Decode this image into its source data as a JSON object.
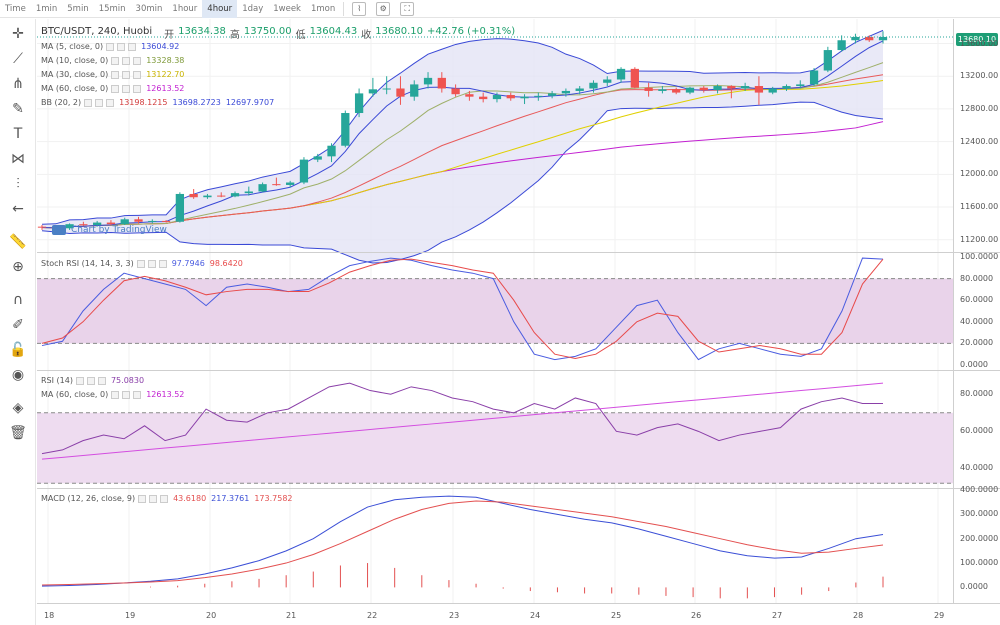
{
  "toolbar": {
    "timeframes": [
      {
        "label": "Time",
        "active": false
      },
      {
        "label": "1min",
        "active": false
      },
      {
        "label": "5min",
        "active": false
      },
      {
        "label": "15min",
        "active": false
      },
      {
        "label": "30min",
        "active": false
      },
      {
        "label": "1hour",
        "active": false
      },
      {
        "label": "4hour",
        "active": true
      },
      {
        "label": "1day",
        "active": false
      },
      {
        "label": "1week",
        "active": false
      },
      {
        "label": "1mon",
        "active": false
      }
    ]
  },
  "header": {
    "symbol": "BTC/USDT, 240, Huobi",
    "open_label": "开",
    "open": "13634.38",
    "high_label": "高",
    "high": "13750.00",
    "low_label": "低",
    "low": "13604.43",
    "close_label": "收",
    "close": "13680.10",
    "change": "+42.76 (+0.31%)"
  },
  "indicators": {
    "ma5": {
      "name": "MA (5, close, 0)",
      "value": "13604.92",
      "color": "#3a49d6"
    },
    "ma10": {
      "name": "MA (10, close, 0)",
      "value": "13328.38",
      "color": "#7f9a3a"
    },
    "ma30": {
      "name": "MA (30, close, 0)",
      "value": "13122.70",
      "color": "#d9c400"
    },
    "ma60": {
      "name": "MA (60, close, 0)",
      "value": "12613.52",
      "color": "#c21fd1"
    },
    "bb": {
      "name": "BB (20, 2)",
      "v1": "13198.1215",
      "v2": "13698.2723",
      "v3": "12697.9707"
    },
    "stoch": {
      "name": "Stoch RSI (14, 14, 3, 3)",
      "k": "97.7946",
      "d": "98.6420"
    },
    "rsi": {
      "name": "RSI (14)",
      "value": "75.0830",
      "ma_name": "MA (60, close, 0)",
      "ma_value": "12613.52"
    },
    "macd": {
      "name": "MACD (12, 26, close, 9)",
      "hist": "43.6180",
      "macd": "217.3761",
      "signal": "173.7582"
    }
  },
  "watermark": "Chart by TradingView",
  "last_price": "13680.10",
  "price_axis": [
    "13600.00",
    "13200.00",
    "12800.00",
    "12400.00",
    "12000.00",
    "11600.00",
    "11200.00"
  ],
  "stoch_axis": [
    "100.0000",
    "80.0000",
    "60.0000",
    "40.0000",
    "20.0000",
    "0.0000"
  ],
  "rsi_axis": [
    "80.0000",
    "60.0000",
    "40.0000"
  ],
  "macd_axis": [
    "400.0000",
    "300.0000",
    "200.0000",
    "100.0000",
    "0.0000"
  ],
  "time_axis": [
    "18",
    "19",
    "20",
    "21",
    "22",
    "23",
    "24",
    "25",
    "26",
    "27",
    "28",
    "29"
  ],
  "colors": {
    "up": "#26a69a",
    "down": "#ef5350",
    "bb_fill": "#e3e4f5",
    "stoch_k": "#4a5ce0",
    "stoch_d": "#e84a4a",
    "rsi": "#8a3fa8",
    "macd": "#3b4fd6",
    "signal": "#e35050"
  },
  "chart_data": {
    "type": "line",
    "candles": [
      [
        11360,
        11380,
        11320,
        11350
      ],
      [
        11350,
        11370,
        11330,
        11340
      ],
      [
        11340,
        11400,
        11320,
        11390
      ],
      [
        11390,
        11420,
        11370,
        11380
      ],
      [
        11380,
        11430,
        11360,
        11410
      ],
      [
        11410,
        11440,
        11380,
        11390
      ],
      [
        11390,
        11470,
        11380,
        11450
      ],
      [
        11450,
        11480,
        11400,
        11420
      ],
      [
        11420,
        11450,
        11400,
        11430
      ],
      [
        11430,
        11440,
        11410,
        11420
      ],
      [
        11420,
        11780,
        11410,
        11760
      ],
      [
        11760,
        11820,
        11700,
        11720
      ],
      [
        11720,
        11760,
        11700,
        11740
      ],
      [
        11740,
        11780,
        11720,
        11730
      ],
      [
        11730,
        11790,
        11720,
        11770
      ],
      [
        11770,
        11850,
        11740,
        11790
      ],
      [
        11790,
        11900,
        11780,
        11880
      ],
      [
        11880,
        11960,
        11860,
        11870
      ],
      [
        11870,
        11920,
        11840,
        11900
      ],
      [
        11900,
        12210,
        11880,
        12180
      ],
      [
        12180,
        12250,
        12150,
        12220
      ],
      [
        12220,
        12380,
        12150,
        12350
      ],
      [
        12350,
        12780,
        12330,
        12750
      ],
      [
        12750,
        13050,
        12700,
        12990
      ],
      [
        12990,
        13180,
        12950,
        13040
      ],
      [
        13040,
        13200,
        12980,
        13050
      ],
      [
        13050,
        13200,
        12850,
        12950
      ],
      [
        12950,
        13150,
        12900,
        13100
      ],
      [
        13100,
        13250,
        13050,
        13180
      ],
      [
        13180,
        13250,
        13000,
        13050
      ],
      [
        13050,
        13100,
        12950,
        12980
      ],
      [
        12980,
        13020,
        12900,
        12950
      ],
      [
        12950,
        13000,
        12880,
        12920
      ],
      [
        12920,
        13000,
        12880,
        12970
      ],
      [
        12970,
        13000,
        12900,
        12930
      ],
      [
        12930,
        12980,
        12860,
        12950
      ],
      [
        12950,
        13000,
        12900,
        12960
      ],
      [
        12960,
        13020,
        12930,
        12990
      ],
      [
        12990,
        13050,
        12950,
        13020
      ],
      [
        13020,
        13080,
        12980,
        13050
      ],
      [
        13050,
        13150,
        13000,
        13120
      ],
      [
        13120,
        13200,
        13080,
        13160
      ],
      [
        13160,
        13310,
        13120,
        13290
      ],
      [
        13290,
        13310,
        13050,
        13060
      ],
      [
        13060,
        13120,
        12950,
        13020
      ],
      [
        13020,
        13080,
        12990,
        13040
      ],
      [
        13040,
        13060,
        12980,
        13000
      ],
      [
        13000,
        13070,
        12980,
        13060
      ],
      [
        13060,
        13080,
        13000,
        13030
      ],
      [
        13030,
        13100,
        12990,
        13080
      ],
      [
        13080,
        13090,
        12930,
        13050
      ],
      [
        13050,
        13120,
        13020,
        13080
      ],
      [
        13080,
        13200,
        12850,
        13000
      ],
      [
        13000,
        13070,
        12980,
        13050
      ],
      [
        13050,
        13100,
        13020,
        13080
      ],
      [
        13080,
        13150,
        13050,
        13100
      ],
      [
        13100,
        13300,
        13080,
        13270
      ],
      [
        13270,
        13560,
        13250,
        13520
      ],
      [
        13520,
        13700,
        13500,
        13640
      ],
      [
        13640,
        13720,
        13600,
        13680
      ],
      [
        13680,
        13700,
        13620,
        13640
      ],
      [
        13640,
        13750,
        13600,
        13680
      ]
    ],
    "stoch_k": [
      18,
      22,
      50,
      70,
      85,
      80,
      75,
      70,
      55,
      72,
      75,
      72,
      68,
      70,
      82,
      92,
      96,
      99,
      97,
      92,
      88,
      85,
      80,
      40,
      10,
      5,
      8,
      15,
      35,
      55,
      60,
      30,
      5,
      15,
      20,
      15,
      10,
      8,
      15,
      50,
      99,
      98
    ],
    "stoch_d": [
      20,
      25,
      40,
      60,
      78,
      82,
      78,
      72,
      65,
      68,
      70,
      70,
      68,
      68,
      76,
      86,
      92,
      97,
      98,
      95,
      92,
      88,
      85,
      60,
      30,
      10,
      6,
      10,
      22,
      40,
      48,
      45,
      22,
      12,
      15,
      18,
      15,
      10,
      10,
      30,
      75,
      98
    ],
    "rsi": [
      48,
      50,
      55,
      58,
      56,
      63,
      55,
      58,
      72,
      66,
      65,
      70,
      72,
      78,
      84,
      86,
      82,
      80,
      84,
      82,
      78,
      76,
      72,
      70,
      75,
      72,
      78,
      75,
      60,
      58,
      62,
      64,
      60,
      55,
      58,
      60,
      62,
      72,
      76,
      78,
      75,
      75
    ],
    "macd_line": [
      5,
      8,
      12,
      18,
      25,
      35,
      55,
      80,
      110,
      150,
      200,
      270,
      330,
      360,
      370,
      375,
      370,
      345,
      320,
      300,
      280,
      265,
      240,
      210,
      180,
      150,
      130,
      120,
      125,
      160,
      200,
      217
    ],
    "signal_line": [
      10,
      12,
      15,
      18,
      22,
      28,
      40,
      55,
      75,
      100,
      135,
      180,
      230,
      280,
      320,
      345,
      355,
      350,
      335,
      320,
      305,
      290,
      270,
      250,
      225,
      200,
      175,
      155,
      140,
      145,
      160,
      174
    ],
    "macd_hist": [
      0,
      0,
      0,
      0,
      3,
      7,
      15,
      25,
      35,
      50,
      65,
      90,
      100,
      80,
      50,
      30,
      15,
      -5,
      -15,
      -20,
      -25,
      -25,
      -30,
      -35,
      -40,
      -45,
      -45,
      -40,
      -30,
      -15,
      20,
      44
    ],
    "rsi_ma": [
      45,
      46,
      47,
      48,
      49,
      50,
      51,
      52,
      53,
      54,
      55,
      56,
      57,
      58,
      59,
      60,
      61,
      62,
      63,
      64,
      65,
      66,
      67,
      68,
      69,
      70,
      71,
      72,
      73,
      74,
      75,
      76,
      77,
      78,
      79,
      80,
      81,
      82,
      83,
      84,
      85,
      86
    ],
    "price_ylim": [
      11050,
      13900
    ],
    "x_labels": [
      "18",
      "19",
      "20",
      "21",
      "22",
      "23",
      "24",
      "25",
      "26",
      "27",
      "28",
      "29"
    ]
  }
}
